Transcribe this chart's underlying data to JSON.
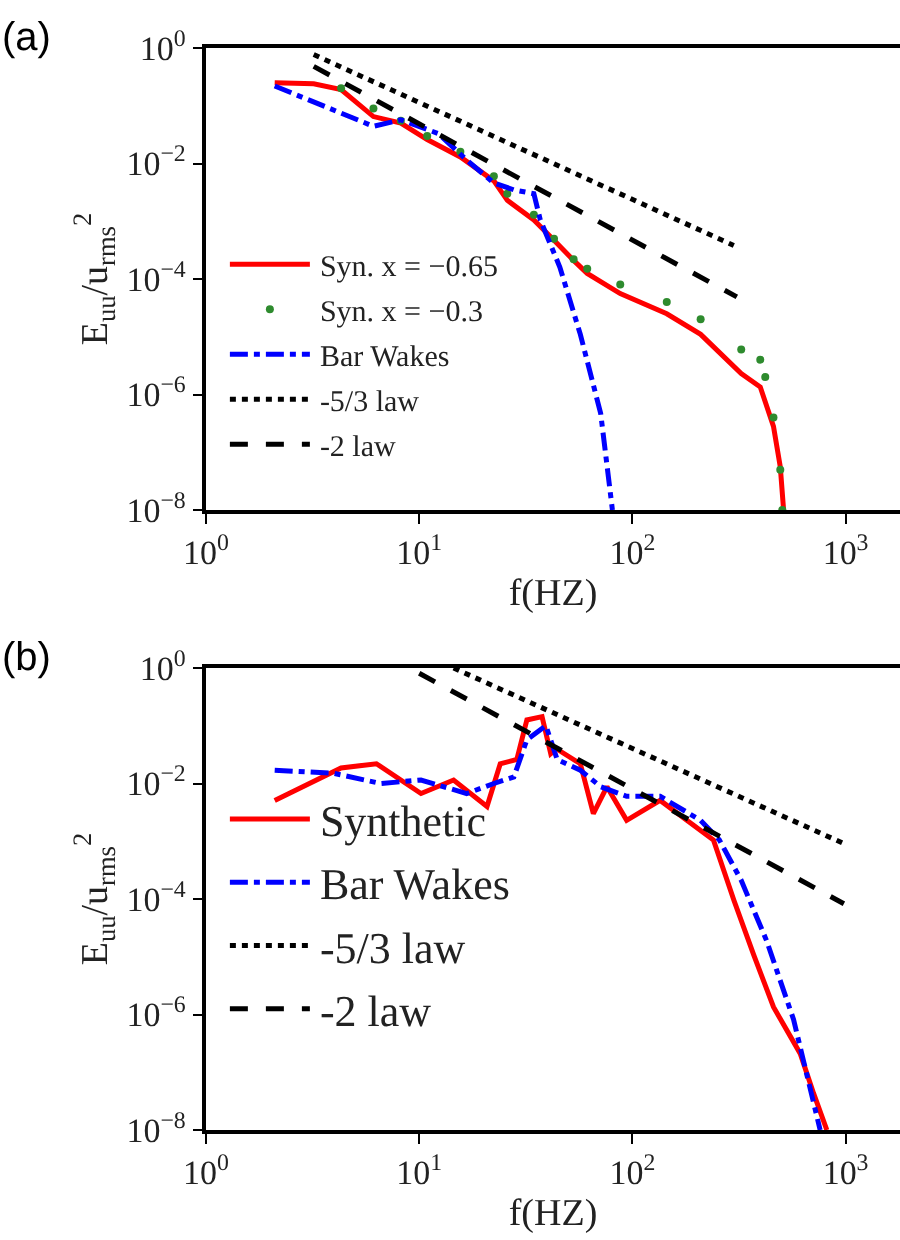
{
  "chart_data": [
    {
      "type": "line",
      "annotations": [
        "(a)"
      ],
      "xlabel": "f(HZ)",
      "ylabel": "E$_{uu}$/u$_{rms}$$^{2}$",
      "log": "xy",
      "grid": false,
      "legend": "bottom left",
      "xlim": [
        1,
        1800
      ],
      "ylim": [
        1e-08,
        1
      ],
      "xticks": [
        {
          "value": 1,
          "label": "10$^{0}$"
        },
        {
          "value": 10,
          "label": "10$^{1}$"
        },
        {
          "value": 100,
          "label": "10$^{2}$"
        },
        {
          "value": 1000,
          "label": "10$^{3}$"
        }
      ],
      "yticks": [
        {
          "value": 1e-08,
          "label": "10$^{−8}$"
        },
        {
          "value": 1e-06,
          "label": "10$^{−6}$"
        },
        {
          "value": 0.0001,
          "label": "10$^{−4}$"
        },
        {
          "value": 0.01,
          "label": "10$^{−2}$"
        },
        {
          "value": 1,
          "label": "10$^{0}$"
        }
      ],
      "series": [
        {
          "name": "Syn. x = −0.65",
          "color": "#ff0000",
          "line_style": "solid",
          "marker": "none",
          "x": [
            2.1,
            3.2,
            4.3,
            6.1,
            8.2,
            10.9,
            15.6,
            22.4,
            25.9,
            34.5,
            42.9,
            53,
            61.4,
            87.7,
            145,
            209,
            324,
            398,
            459,
            494,
            512
          ],
          "values": [
            0.25,
            0.24,
            0.19,
            0.065,
            0.05,
            0.026,
            0.013,
            0.005,
            0.0023,
            0.00105,
            0.00047,
            0.00021,
            0.000125,
            5.6e-05,
            2.5e-05,
            1.1e-05,
            2.3e-06,
            1.35e-06,
            2.8e-07,
            5.6e-08,
            1e-08
          ]
        },
        {
          "name": "Syn. x = −0.3",
          "type": "scatter",
          "color": "#2e8b2e",
          "marker": "circle",
          "x": [
            4.3,
            6.1,
            8.2,
            10.9,
            15.6,
            22.4,
            25.9,
            34.5,
            42.9,
            53,
            61.4,
            87.7,
            145,
            209,
            324,
            398,
            420,
            459,
            494,
            505
          ],
          "values": [
            0.2,
            0.09,
            0.055,
            0.03,
            0.016,
            0.006,
            0.003,
            0.0013,
            0.0005,
            0.00022,
            0.00015,
            8e-05,
            4e-05,
            2e-05,
            6e-06,
            4e-06,
            2e-06,
            4e-07,
            5e-08,
            1e-08
          ]
        },
        {
          "name": "Bar Wakes",
          "color": "#0000ff",
          "line_style": "dashdot",
          "marker": "none",
          "x": [
            2.1,
            6.1,
            8.2,
            12.3,
            16.7,
            22.4,
            27.8,
            34.5,
            37,
            45.7,
            57,
            71,
            80.6
          ],
          "values": [
            0.22,
            0.044,
            0.057,
            0.033,
            0.0115,
            0.0046,
            0.0035,
            0.003,
            0.00105,
            0.00016,
            1.1e-05,
            4.7e-07,
            1e-08
          ]
        },
        {
          "name": "-5/3 law",
          "color": "#000000",
          "line_style": "dotted",
          "marker": "none",
          "x": [
            3.2,
            299
          ],
          "values": [
            0.77,
            0.00038
          ]
        },
        {
          "name": "-2 law",
          "color": "#000000",
          "line_style": "dashed",
          "marker": "none",
          "x": [
            3.2,
            309
          ],
          "values": [
            0.48,
            4.9e-05
          ]
        }
      ]
    },
    {
      "type": "line",
      "annotations": [
        "(b)"
      ],
      "xlabel": "f(HZ)",
      "ylabel": "E$_{uu}$/u$_{rms}$$^{2}$",
      "log": "xy",
      "grid": false,
      "legend": "bottom left",
      "xlim": [
        1,
        1800
      ],
      "ylim": [
        1e-08,
        1
      ],
      "xticks": [
        {
          "value": 1,
          "label": "10$^{0}$"
        },
        {
          "value": 10,
          "label": "10$^{1}$"
        },
        {
          "value": 100,
          "label": "10$^{2}$"
        },
        {
          "value": 1000,
          "label": "10$^{3}$"
        }
      ],
      "yticks": [
        {
          "value": 1e-08,
          "label": "10$^{−8}$"
        },
        {
          "value": 1e-06,
          "label": "10$^{−6}$"
        },
        {
          "value": 0.0001,
          "label": "10$^{−4}$"
        },
        {
          "value": 0.01,
          "label": "10$^{−2}$"
        },
        {
          "value": 1,
          "label": "10$^{0}$"
        }
      ],
      "series": [
        {
          "name": "Synthetic",
          "color": "#ff0000",
          "line_style": "solid",
          "marker": "none",
          "x": [
            2.1,
            4.3,
            6.3,
            10.2,
            14.5,
            20.8,
            24,
            28.7,
            32,
            37.7,
            41.4,
            44,
            57,
            65.6,
            76,
            94,
            135,
            180,
            240,
            299,
            370,
            459,
            613,
            708,
            817
          ],
          "values": [
            0.0051,
            0.0186,
            0.022,
            0.0067,
            0.0115,
            0.004,
            0.022,
            0.026,
            0.126,
            0.144,
            0.033,
            0.04,
            0.022,
            0.003,
            0.0088,
            0.0023,
            0.0051,
            0.0023,
            0.00105,
            9.6e-05,
            1.1e-05,
            1.35e-06,
            2.1e-07,
            4.3e-08,
            1e-08
          ]
        },
        {
          "name": "Bar Wakes",
          "color": "#0000ff",
          "line_style": "dashdot",
          "marker": "none",
          "x": [
            2.1,
            3.98,
            6.6,
            10.2,
            16.7,
            22.4,
            27.8,
            32,
            39.3,
            44.4,
            57,
            71,
            94,
            135,
            209,
            256,
            324,
            426,
            570,
            760
          ],
          "values": [
            0.017,
            0.015,
            0.01,
            0.0115,
            0.0067,
            0.01,
            0.013,
            0.057,
            0.1,
            0.026,
            0.017,
            0.0088,
            0.006,
            0.006,
            0.0023,
            0.00105,
            0.00021,
            1.9e-05,
            8.2e-07,
            1e-08
          ]
        },
        {
          "name": "-5/3 law",
          "color": "#000000",
          "line_style": "dotted",
          "marker": "none",
          "x": [
            14.5,
            982
          ],
          "values": [
            1,
            0.00091
          ]
        },
        {
          "name": "-2 law",
          "color": "#000000",
          "line_style": "dashed",
          "marker": "none",
          "x": [
            10,
            982
          ],
          "values": [
            0.81,
            8.3e-05
          ]
        }
      ]
    }
  ]
}
